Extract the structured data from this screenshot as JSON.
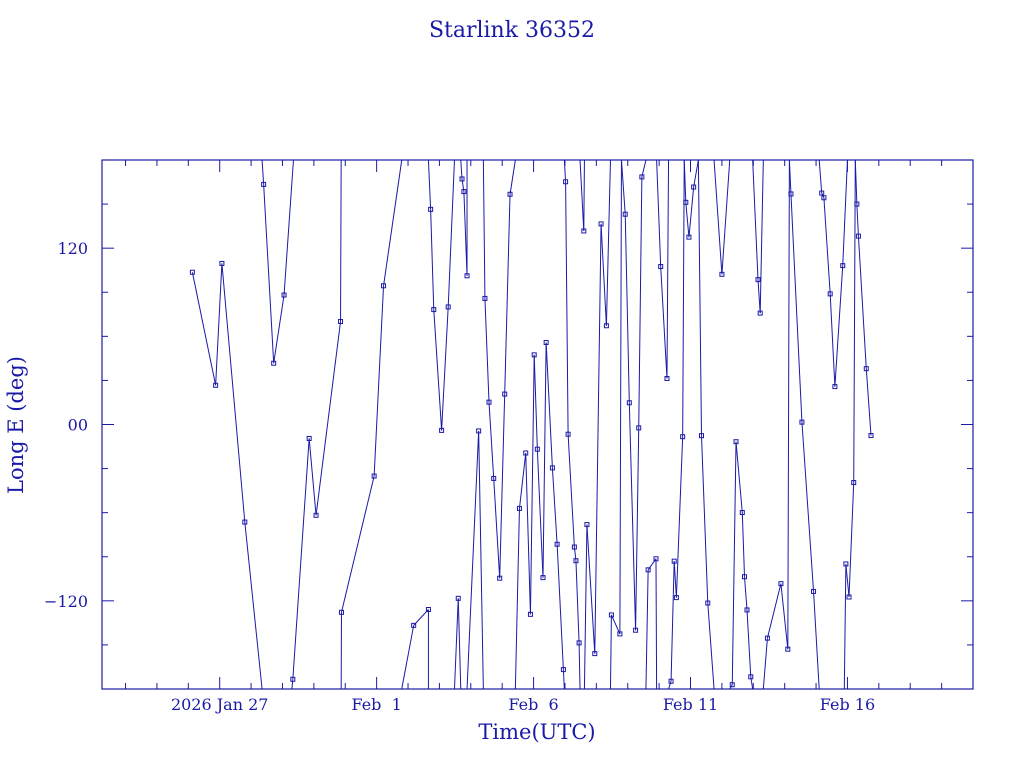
{
  "chart_data": {
    "type": "line",
    "title": "Starlink 36352",
    "xlabel": "Time(UTC)",
    "ylabel": "Long E (deg)",
    "xlim": [
      -3.75,
      24.0
    ],
    "ylim": [
      -180,
      180
    ],
    "x_ticks": [
      {
        "value": 0,
        "label": "2026 Jan 27"
      },
      {
        "value": 5,
        "label": "Feb  1"
      },
      {
        "value": 10,
        "label": "Feb  6"
      },
      {
        "value": 15,
        "label": "Feb 11"
      },
      {
        "value": 20,
        "label": "Feb 16"
      }
    ],
    "y_ticks": [
      {
        "value": 120,
        "label": "120"
      },
      {
        "value": 0,
        "label": "00"
      },
      {
        "value": -120,
        "label": "−120"
      }
    ],
    "x_minor_step": 1,
    "y_minor_step": 30,
    "grid": false,
    "x_units": "days since 2026 Jan 27 00:00 UTC",
    "segments": [
      [
        [
          -0.87,
          103.6
        ],
        [
          -0.13,
          26.7
        ],
        [
          0.07,
          109.6
        ],
        [
          0.8,
          -66.4
        ],
        [
          1.35,
          -180
        ]
      ],
      [
        [
          1.35,
          180
        ],
        [
          1.4,
          163.4
        ],
        [
          1.72,
          41.7
        ],
        [
          2.05,
          88.1
        ],
        [
          2.35,
          180
        ]
      ],
      [
        [
          2.3,
          -180
        ],
        [
          2.33,
          -173.4
        ],
        [
          2.85,
          -9.5
        ],
        [
          3.07,
          -61.8
        ],
        [
          3.85,
          70.1
        ],
        [
          3.87,
          180
        ]
      ],
      [
        [
          3.87,
          -180
        ],
        [
          3.88,
          -127.8
        ],
        [
          4.92,
          -35.1
        ],
        [
          5.22,
          94.4
        ],
        [
          5.8,
          180
        ]
      ],
      [
        [
          6.65,
          180
        ],
        [
          6.72,
          146.4
        ],
        [
          6.82,
          78.2
        ],
        [
          7.07,
          -4.0
        ],
        [
          7.28,
          80.0
        ],
        [
          7.48,
          180
        ]
      ],
      [
        [
          5.8,
          -180
        ],
        [
          6.18,
          -136.7
        ],
        [
          6.65,
          -125.9
        ],
        [
          6.65,
          -180
        ]
      ],
      [
        [
          7.48,
          -180
        ],
        [
          7.6,
          -118.3
        ],
        [
          7.68,
          -180
        ]
      ],
      [
        [
          7.68,
          180
        ],
        [
          7.72,
          167.1
        ],
        [
          7.78,
          158.5
        ],
        [
          7.88,
          101.2
        ],
        [
          7.88,
          180
        ]
      ],
      [
        [
          7.88,
          -180
        ],
        [
          8.25,
          -4.4
        ],
        [
          8.4,
          -180
        ]
      ],
      [
        [
          8.4,
          180
        ],
        [
          8.45,
          85.8
        ],
        [
          8.58,
          15.2
        ],
        [
          8.73,
          -36.7
        ],
        [
          8.92,
          -104.6
        ],
        [
          9.08,
          20.7
        ],
        [
          9.25,
          156.7
        ],
        [
          9.42,
          180
        ]
      ],
      [
        [
          9.42,
          -180
        ],
        [
          9.55,
          -57.1
        ],
        [
          9.75,
          -19.4
        ],
        [
          9.9,
          -129.2
        ],
        [
          10.02,
          47.4
        ],
        [
          10.12,
          -16.8
        ],
        [
          10.3,
          -104.2
        ],
        [
          10.4,
          55.8
        ],
        [
          10.6,
          -29.5
        ],
        [
          10.75,
          -81.5
        ],
        [
          10.95,
          -166.8
        ],
        [
          10.98,
          -180
        ]
      ],
      [
        [
          10.98,
          180
        ],
        [
          11.02,
          165.2
        ],
        [
          11.1,
          -6.6
        ],
        [
          11.3,
          -83.4
        ],
        [
          11.35,
          -92.7
        ],
        [
          11.45,
          -148.6
        ],
        [
          11.48,
          -180
        ]
      ],
      [
        [
          11.48,
          180
        ],
        [
          11.6,
          131.7
        ],
        [
          11.62,
          180
        ]
      ],
      [
        [
          11.62,
          -180
        ],
        [
          11.7,
          -68.1
        ],
        [
          11.95,
          -155.9
        ],
        [
          12.15,
          136.5
        ],
        [
          12.32,
          67.2
        ],
        [
          12.45,
          180
        ]
      ],
      [
        [
          12.45,
          -180
        ],
        [
          12.48,
          -129.6
        ],
        [
          12.75,
          -142.5
        ],
        [
          12.8,
          180
        ]
      ],
      [
        [
          12.8,
          180
        ],
        [
          12.92,
          143.1
        ],
        [
          13.05,
          14.8
        ],
        [
          13.25,
          -140.0
        ],
        [
          13.35,
          -2.3
        ],
        [
          13.45,
          168.5
        ],
        [
          13.58,
          180
        ]
      ],
      [
        [
          13.58,
          -180
        ],
        [
          13.65,
          -98.9
        ],
        [
          13.9,
          -91.4
        ],
        [
          13.92,
          -180
        ]
      ],
      [
        [
          13.92,
          180
        ],
        [
          14.05,
          107.5
        ],
        [
          14.25,
          31.3
        ],
        [
          14.3,
          180
        ]
      ],
      [
        [
          14.3,
          -180
        ],
        [
          14.38,
          -174.7
        ],
        [
          14.48,
          -93.0
        ],
        [
          14.55,
          -117.8
        ],
        [
          14.75,
          -8.3
        ],
        [
          14.8,
          180
        ]
      ],
      [
        [
          14.8,
          180
        ],
        [
          14.85,
          151.2
        ],
        [
          14.95,
          127.5
        ],
        [
          15.1,
          161.6
        ],
        [
          15.25,
          180
        ]
      ],
      [
        [
          15.25,
          180
        ],
        [
          15.35,
          -7.6
        ],
        [
          15.55,
          -121.5
        ],
        [
          15.75,
          -180
        ]
      ],
      [
        [
          15.75,
          180
        ],
        [
          16.0,
          102.2
        ],
        [
          16.25,
          180
        ]
      ],
      [
        [
          16.25,
          -180
        ],
        [
          16.33,
          -177.1
        ],
        [
          16.45,
          -11.7
        ],
        [
          16.65,
          -59.9
        ],
        [
          16.72,
          -103.6
        ],
        [
          16.8,
          -126.2
        ],
        [
          16.92,
          -171.7
        ],
        [
          16.98,
          -180
        ]
      ],
      [
        [
          16.98,
          180
        ],
        [
          17.15,
          98.6
        ],
        [
          17.22,
          75.8
        ],
        [
          17.32,
          180
        ]
      ],
      [
        [
          17.32,
          -180
        ],
        [
          17.45,
          -145.4
        ],
        [
          17.88,
          -108.3
        ],
        [
          18.1,
          -152.9
        ],
        [
          18.15,
          180
        ]
      ],
      [
        [
          18.15,
          180
        ],
        [
          18.2,
          156.9
        ],
        [
          18.55,
          1.6
        ],
        [
          18.92,
          -113.6
        ],
        [
          19.1,
          -180
        ]
      ],
      [
        [
          19.1,
          180
        ],
        [
          19.18,
          157.5
        ],
        [
          19.25,
          154.3
        ],
        [
          19.45,
          88.9
        ],
        [
          19.6,
          25.8
        ],
        [
          19.85,
          108.1
        ],
        [
          20.0,
          180
        ]
      ],
      [
        [
          19.9,
          -180
        ],
        [
          19.95,
          -94.9
        ],
        [
          20.05,
          -117.4
        ],
        [
          20.2,
          -39.5
        ],
        [
          20.25,
          180
        ]
      ],
      [
        [
          20.25,
          180
        ],
        [
          20.3,
          150.0
        ],
        [
          20.35,
          128.2
        ],
        [
          20.6,
          38.0
        ],
        [
          20.75,
          -7.5
        ]
      ]
    ]
  }
}
